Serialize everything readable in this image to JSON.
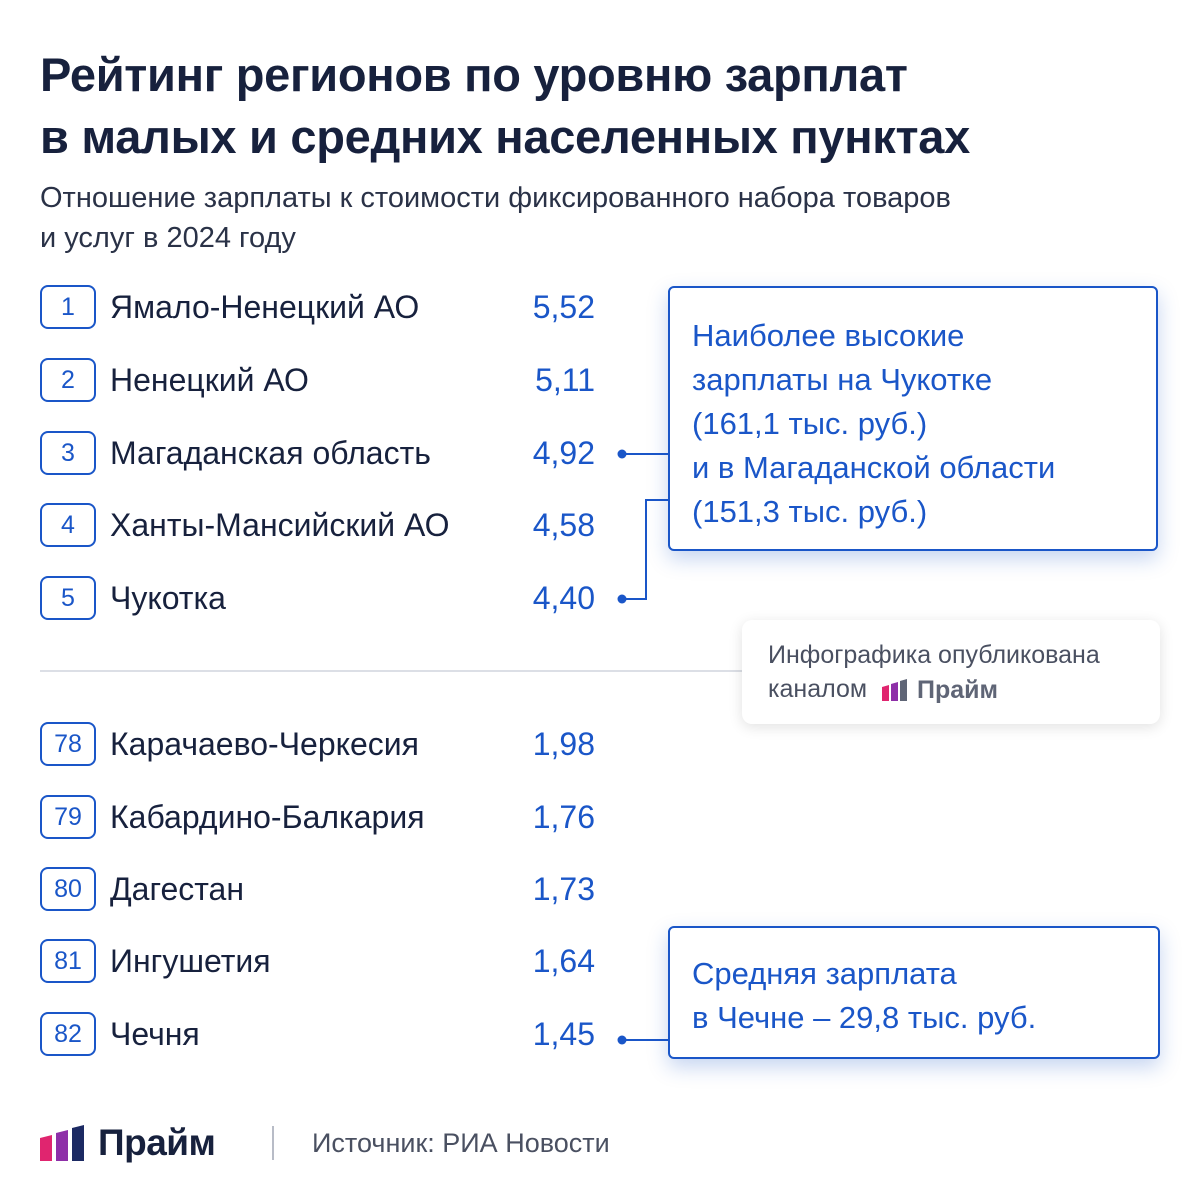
{
  "title": [
    "Рейтинг регионов по уровню зарплат",
    "в малых и средних населенных пунктах"
  ],
  "subtitle": [
    "Отношение зарплаты к стоимости фиксированного набора товаров",
    "и услуг в 2024 году"
  ],
  "top_regions": [
    {
      "rank": "1",
      "region": "Ямало-Ненецкий АО",
      "value": "5,52"
    },
    {
      "rank": "2",
      "region": "Ненецкий АО",
      "value": "5,11"
    },
    {
      "rank": "3",
      "region": "Магаданская область",
      "value": "4,92"
    },
    {
      "rank": "4",
      "region": "Ханты-Мансийский АО",
      "value": "4,58"
    },
    {
      "rank": "5",
      "region": "Чукотка",
      "value": "4,40"
    }
  ],
  "bottom_regions": [
    {
      "rank": "78",
      "region": "Карачаево-Черкесия",
      "value": "1,98"
    },
    {
      "rank": "79",
      "region": "Кабардино-Балкария",
      "value": "1,76"
    },
    {
      "rank": "80",
      "region": "Дагестан",
      "value": "1,73"
    },
    {
      "rank": "81",
      "region": "Ингушетия",
      "value": "1,64"
    },
    {
      "rank": "82",
      "region": "Чечня",
      "value": "1,45"
    }
  ],
  "callout_top": [
    "Наиболее высокие",
    "зарплаты на Чукотке",
    "(161,1 тыс. руб.)",
    "и в Магаданской области",
    "(151,3 тыс. руб.)"
  ],
  "callout_bottom": [
    "Средняя зарплата",
    "в Чечне – 29,8 тыс. руб."
  ],
  "publication": {
    "line1": "Инфографика опубликована",
    "line2": "каналом",
    "brand": "Прайм"
  },
  "footer": {
    "brand": "Прайм",
    "source": "Источник: РИА Новости"
  },
  "colors": {
    "accent": "#1a56c8",
    "logo_pink": "#e0256f",
    "logo_purple": "#8e2fa8",
    "logo_navy": "#1c2a63",
    "text": "#17213d"
  }
}
